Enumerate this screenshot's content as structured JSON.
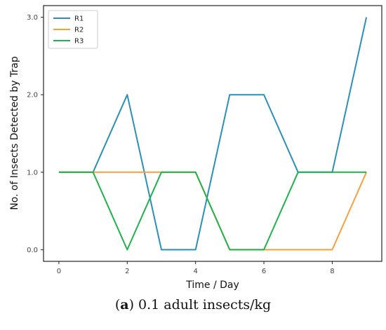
{
  "chart_data": {
    "type": "line",
    "xlabel": "Time / Day",
    "ylabel": "No. of Insects Detected by Trap",
    "x": [
      0,
      1,
      2,
      3,
      4,
      5,
      6,
      7,
      8,
      9
    ],
    "xticks": [
      0,
      2,
      4,
      6,
      8
    ],
    "xtick_labels": [
      "0",
      "2",
      "4",
      "6",
      "8"
    ],
    "yticks": [
      0,
      1,
      2,
      3
    ],
    "ytick_labels": [
      "0.0",
      "1.0",
      "2.0",
      "3.0"
    ],
    "xlim": [
      -0.45,
      9.45
    ],
    "ylim": [
      -0.15,
      3.15
    ],
    "grid": false,
    "legend_position": "top-left",
    "series": [
      {
        "name": "R1",
        "color": "#2b90b8",
        "values": [
          1,
          1,
          2,
          0,
          0,
          2,
          2,
          1,
          1,
          3
        ]
      },
      {
        "name": "R2",
        "color": "#f5a03a",
        "values": [
          1,
          1,
          1,
          1,
          1,
          0,
          0,
          0,
          0,
          1
        ]
      },
      {
        "name": "R3",
        "color": "#1db34a",
        "values": [
          1,
          1,
          0,
          1,
          1,
          0,
          0,
          1,
          1,
          1
        ]
      }
    ]
  },
  "caption": {
    "label": "a",
    "text": " 0.1 adult insects/kg"
  }
}
